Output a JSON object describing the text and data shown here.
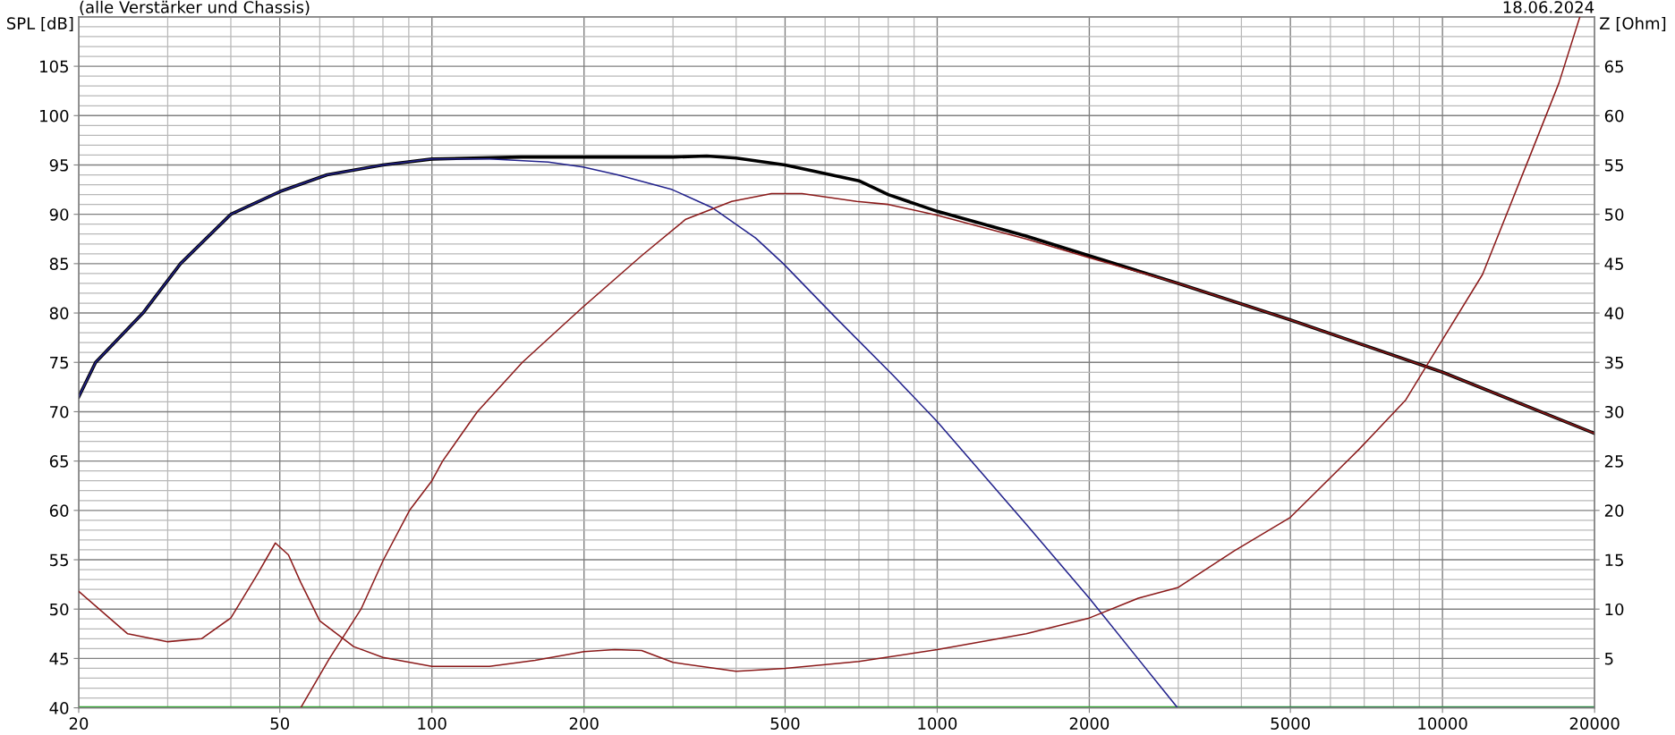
{
  "chart_data": {
    "type": "line",
    "subtitle": "(alle Verstärker und Chassis)",
    "annotations": [
      "18.06.2024"
    ],
    "ylabel": "SPL [dB]",
    "y2label": "Z [Ohm]",
    "log": "x",
    "grid": true,
    "marker": "none",
    "line_style": "solid",
    "xlim": [
      20,
      20000
    ],
    "xticks": [
      20,
      50,
      100,
      200,
      500,
      1000,
      2000,
      5000,
      10000,
      20000
    ],
    "ylim": [
      40,
      110
    ],
    "yticks": [
      40,
      45,
      50,
      55,
      60,
      65,
      70,
      75,
      80,
      85,
      90,
      95,
      100,
      105
    ],
    "y2lim": [
      0,
      70
    ],
    "y2ticks": [
      5,
      10,
      15,
      20,
      25,
      30,
      35,
      40,
      45,
      50,
      55,
      60,
      65
    ],
    "series": [
      {
        "color": "#3aa63a",
        "x": [
          20,
          20000
        ],
        "values": [
          40,
          40
        ]
      },
      {
        "color": "#000000",
        "x": [
          20,
          21.6,
          26.8,
          31.8,
          40,
          50,
          62,
          80,
          100,
          150,
          200,
          300,
          350,
          400,
          500,
          700,
          800,
          1000,
          1500,
          2000,
          3000,
          5000,
          10000,
          20000
        ],
        "values": [
          71.5,
          75,
          80,
          85,
          90,
          92.3,
          94,
          95,
          95.6,
          95.8,
          95.8,
          95.8,
          95.9,
          95.7,
          95,
          93.4,
          92,
          90.3,
          87.8,
          85.8,
          83,
          79.3,
          74,
          67.8
        ]
      },
      {
        "color": "#22228c",
        "x": [
          20,
          21.6,
          26.8,
          31.8,
          40,
          50,
          62,
          80,
          100,
          130,
          170,
          199,
          233,
          299,
          358,
          437,
          496,
          625,
          821,
          1000,
          1500,
          2000,
          2990,
          20000
        ],
        "values": [
          71.5,
          75,
          80,
          85,
          90,
          92.3,
          94,
          95,
          95.6,
          95.6,
          95.3,
          94.8,
          94,
          92.5,
          90.7,
          87.6,
          85,
          79.7,
          73.6,
          69,
          58.6,
          51.1,
          40,
          40
        ]
      },
      {
        "color": "#8b1a1a",
        "x": [
          55,
          62.7,
          72.4,
          80.2,
          90.3,
          100,
          105,
          123,
          151,
          198,
          260,
          318,
          392,
          470,
          540,
          693,
          801,
          1000,
          1500,
          2000,
          3000,
          5000,
          10000,
          20000
        ],
        "values": [
          40,
          45,
          50,
          55,
          60,
          63,
          65,
          70,
          75,
          80.5,
          85.8,
          89.5,
          91.3,
          92.1,
          92.1,
          91.3,
          91,
          89.9,
          87.5,
          85.6,
          83,
          79.3,
          74,
          67.8
        ]
      },
      {
        "color": "#8b1a1a",
        "axis": "y2",
        "x": [
          20,
          25,
          30,
          35,
          40,
          45,
          49,
          52,
          55,
          60,
          70,
          80,
          100,
          130,
          160,
          200,
          230,
          260,
          300,
          400,
          500,
          700,
          1000,
          1500,
          2000,
          2500,
          3000,
          3870,
          5000,
          6840,
          8460,
          10000,
          12000,
          15000,
          17000,
          18700
        ],
        "values": [
          11.8,
          7.5,
          6.7,
          7,
          9.1,
          13.4,
          16.7,
          15.5,
          12.7,
          8.8,
          6.2,
          5.1,
          4.2,
          4.2,
          4.8,
          5.7,
          5.9,
          5.8,
          4.6,
          3.7,
          4,
          4.7,
          5.9,
          7.5,
          9.1,
          11.1,
          12.2,
          15.9,
          19.3,
          26.2,
          31.2,
          37.3,
          43.9,
          56.3,
          63.3,
          70
        ]
      }
    ]
  }
}
